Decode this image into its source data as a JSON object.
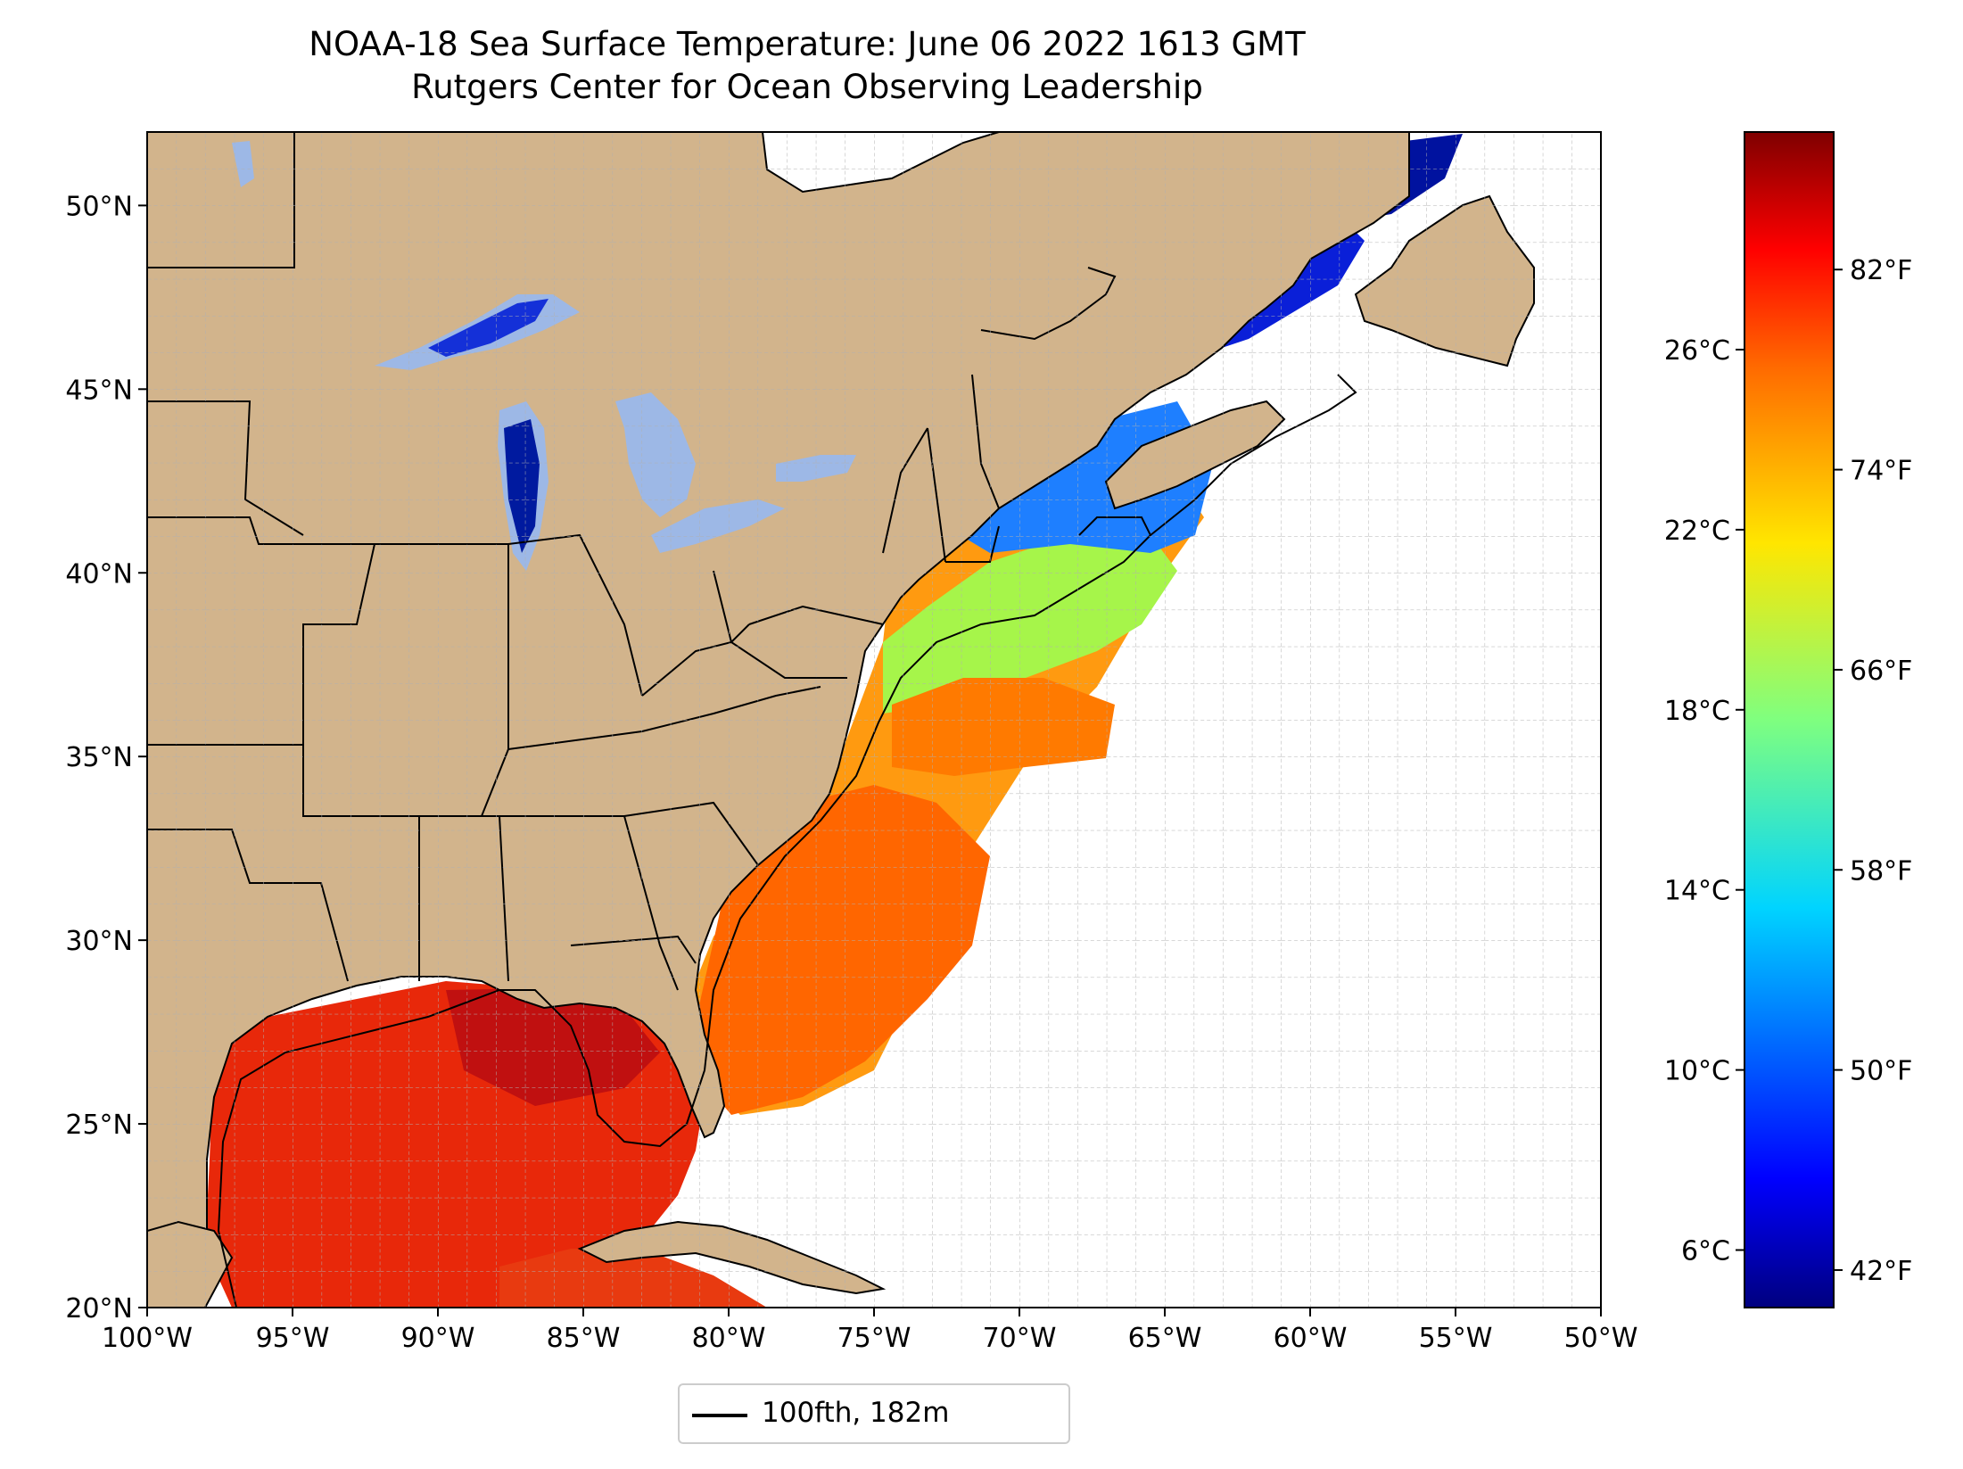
{
  "title": {
    "line1": "NOAA-18 Sea Surface Temperature: June 06 2022 1613 GMT",
    "line2": "Rutgers Center for Ocean Observing Leadership"
  },
  "map": {
    "lon_range": [
      -100,
      -50
    ],
    "lat_range": [
      20,
      52
    ],
    "grid": "dashed, 1 degree",
    "lon_ticks": [
      "100°W",
      "95°W",
      "90°W",
      "85°W",
      "80°W",
      "75°W",
      "70°W",
      "65°W",
      "60°W",
      "55°W",
      "50°W"
    ],
    "lon_values": [
      -100,
      -95,
      -90,
      -85,
      -80,
      -75,
      -70,
      -65,
      -60,
      -55,
      -50
    ],
    "lat_ticks": [
      "20°N",
      "25°N",
      "30°N",
      "35°N",
      "40°N",
      "45°N",
      "50°N"
    ],
    "lat_values": [
      20,
      25,
      30,
      35,
      40,
      45,
      50
    ],
    "colors": {
      "land": "#d2b48c",
      "lakes": "#9db8e6",
      "ocean_nodata": "#ffffff",
      "borders": "#000000"
    }
  },
  "colorbar": {
    "colormap": "jet",
    "celsius_ticks": [
      "6°C",
      "10°C",
      "14°C",
      "18°C",
      "22°C",
      "26°C"
    ],
    "celsius_values": [
      6,
      10,
      14,
      18,
      22,
      26
    ],
    "fahrenheit_ticks": [
      "42°F",
      "50°F",
      "58°F",
      "66°F",
      "74°F",
      "82°F"
    ],
    "fahrenheit_values": [
      42,
      50,
      58,
      66,
      74,
      82
    ],
    "range_f": [
      40.5,
      87.5
    ]
  },
  "legend": {
    "label": "100fth, 182m",
    "line_color": "#000000"
  }
}
